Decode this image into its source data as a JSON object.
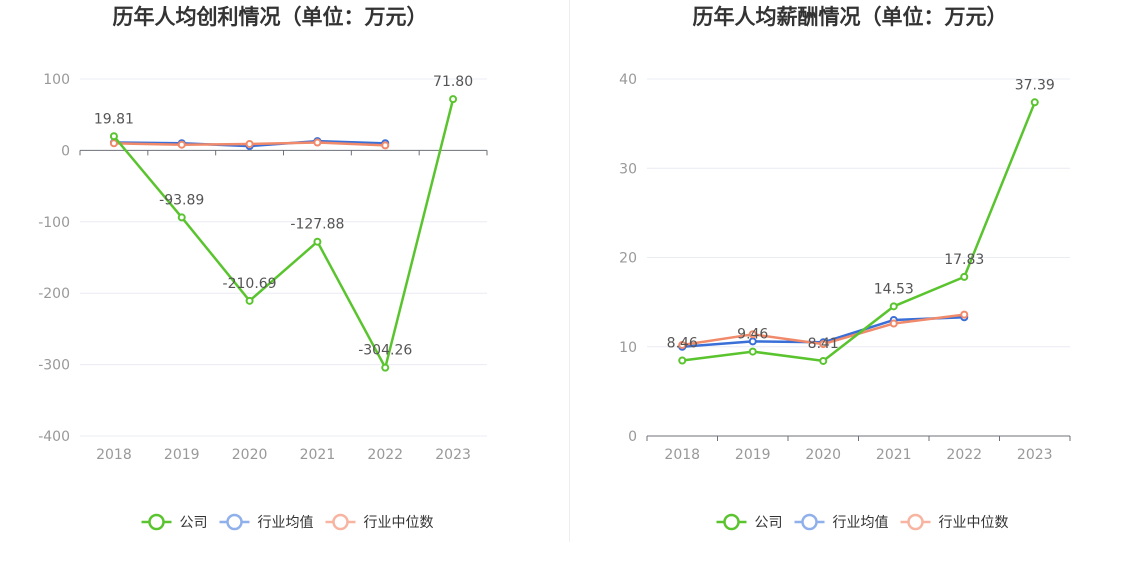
{
  "chart_data": [
    {
      "type": "line",
      "title": "历年人均创利情况（单位：万元）",
      "categories": [
        "2018",
        "2019",
        "2020",
        "2021",
        "2022",
        "2023"
      ],
      "ylim": [
        -400,
        100
      ],
      "yticks": [
        100,
        0,
        -100,
        -200,
        -300,
        -400
      ],
      "grid": true,
      "legend_position": "bottom",
      "series": [
        {
          "name": "公司",
          "color": "#5ac42f",
          "values": [
            19.81,
            -93.89,
            -210.69,
            -127.88,
            -304.26,
            71.8
          ],
          "labels": [
            "19.81",
            "-93.89",
            "-210.69",
            "-127.88",
            "-304.26",
            "71.80"
          ]
        },
        {
          "name": "行业均值",
          "color": "#3a6fd8",
          "values": [
            11,
            10,
            6,
            13,
            10,
            null
          ]
        },
        {
          "name": "行业中位数",
          "color": "#f08a6a",
          "values": [
            10,
            8,
            9,
            11,
            7,
            null
          ]
        }
      ]
    },
    {
      "type": "line",
      "title": "历年人均薪酬情况（单位：万元）",
      "categories": [
        "2018",
        "2019",
        "2020",
        "2021",
        "2022",
        "2023"
      ],
      "ylim": [
        0,
        40
      ],
      "yticks": [
        40,
        30,
        20,
        10,
        0
      ],
      "grid": true,
      "legend_position": "bottom",
      "series": [
        {
          "name": "公司",
          "color": "#5ac42f",
          "values": [
            8.46,
            9.46,
            8.41,
            14.53,
            17.83,
            37.39
          ],
          "labels": [
            "8.46",
            "9.46",
            "8.41",
            "14.53",
            "17.83",
            "37.39"
          ]
        },
        {
          "name": "行业均值",
          "color": "#3a6fd8",
          "values": [
            10.0,
            10.6,
            10.5,
            13.0,
            13.3,
            null
          ]
        },
        {
          "name": "行业中位数",
          "color": "#f08a6a",
          "values": [
            10.2,
            11.4,
            10.3,
            12.6,
            13.6,
            null
          ]
        }
      ]
    }
  ],
  "legend": {
    "items": [
      {
        "label": "公司",
        "color": "#5ac42f"
      },
      {
        "label": "行业均值",
        "color": "#8fb0ea"
      },
      {
        "label": "行业中位数",
        "color": "#f7b4a0"
      }
    ]
  }
}
